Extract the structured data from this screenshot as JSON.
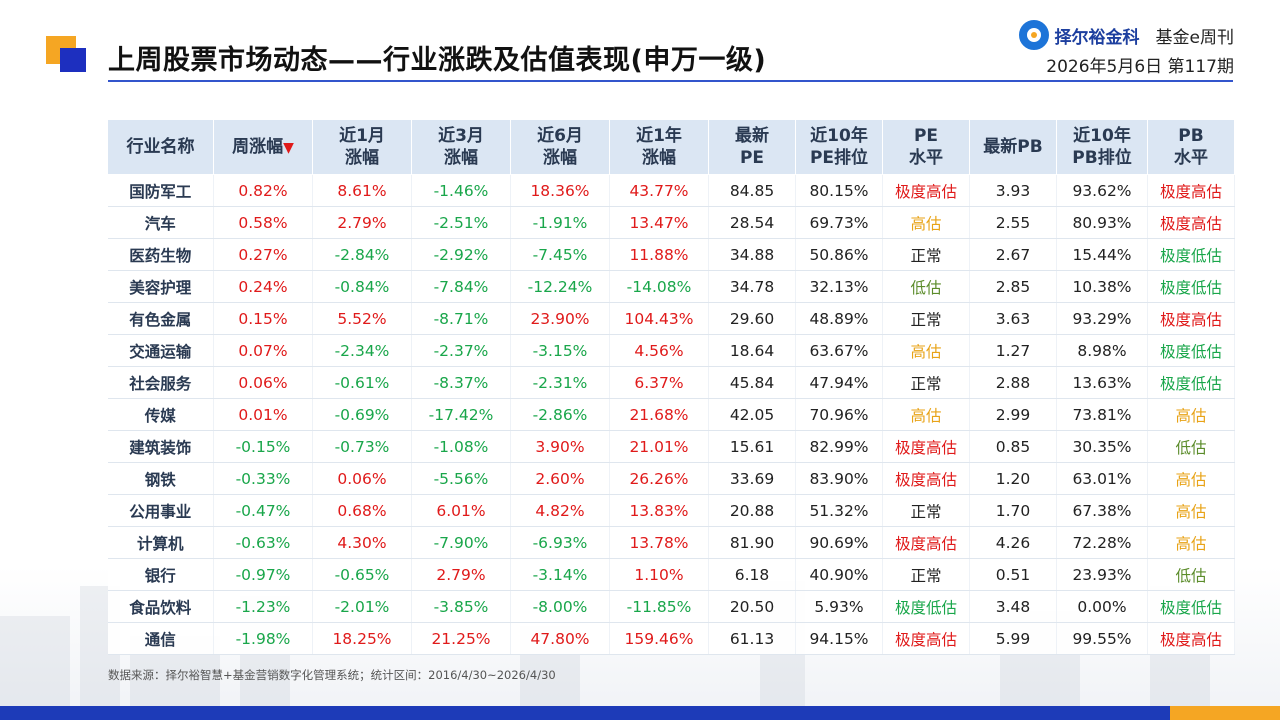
{
  "header": {
    "title": "上周股票市场动态——行业涨跌及估值表现(申万一级)",
    "brand_name": "择尔裕金科",
    "brand_tag": "基金e周刊",
    "date_issue": "2026年5月6日 第117期"
  },
  "table": {
    "headers": [
      "行业名称",
      "周涨幅",
      "近1月\n涨幅",
      "近3月\n涨幅",
      "近6月\n涨幅",
      "近1年\n涨幅",
      "最新\nPE",
      "近10年\nPE排位",
      "PE\n水平",
      "最新PB",
      "近10年\nPB排位",
      "PB\n水平"
    ],
    "sort_indicator": "▼",
    "rows": [
      [
        "国防军工",
        "0.82%",
        "8.61%",
        "-1.46%",
        "18.36%",
        "43.77%",
        "84.85",
        "80.15%",
        "极度高估",
        "3.93",
        "93.62%",
        "极度高估"
      ],
      [
        "汽车",
        "0.58%",
        "2.79%",
        "-2.51%",
        "-1.91%",
        "13.47%",
        "28.54",
        "69.73%",
        "高估",
        "2.55",
        "80.93%",
        "极度高估"
      ],
      [
        "医药生物",
        "0.27%",
        "-2.84%",
        "-2.92%",
        "-7.45%",
        "11.88%",
        "34.88",
        "50.86%",
        "正常",
        "2.67",
        "15.44%",
        "极度低估"
      ],
      [
        "美容护理",
        "0.24%",
        "-0.84%",
        "-7.84%",
        "-12.24%",
        "-14.08%",
        "34.78",
        "32.13%",
        "低估",
        "2.85",
        "10.38%",
        "极度低估"
      ],
      [
        "有色金属",
        "0.15%",
        "5.52%",
        "-8.71%",
        "23.90%",
        "104.43%",
        "29.60",
        "48.89%",
        "正常",
        "3.63",
        "93.29%",
        "极度高估"
      ],
      [
        "交通运输",
        "0.07%",
        "-2.34%",
        "-2.37%",
        "-3.15%",
        "4.56%",
        "18.64",
        "63.67%",
        "高估",
        "1.27",
        "8.98%",
        "极度低估"
      ],
      [
        "社会服务",
        "0.06%",
        "-0.61%",
        "-8.37%",
        "-2.31%",
        "6.37%",
        "45.84",
        "47.94%",
        "正常",
        "2.88",
        "13.63%",
        "极度低估"
      ],
      [
        "传媒",
        "0.01%",
        "-0.69%",
        "-17.42%",
        "-2.86%",
        "21.68%",
        "42.05",
        "70.96%",
        "高估",
        "2.99",
        "73.81%",
        "高估"
      ],
      [
        "建筑装饰",
        "-0.15%",
        "-0.73%",
        "-1.08%",
        "3.90%",
        "21.01%",
        "15.61",
        "82.99%",
        "极度高估",
        "0.85",
        "30.35%",
        "低估"
      ],
      [
        "钢铁",
        "-0.33%",
        "0.06%",
        "-5.56%",
        "2.60%",
        "26.26%",
        "33.69",
        "83.90%",
        "极度高估",
        "1.20",
        "63.01%",
        "高估"
      ],
      [
        "公用事业",
        "-0.47%",
        "0.68%",
        "6.01%",
        "4.82%",
        "13.83%",
        "20.88",
        "51.32%",
        "正常",
        "1.70",
        "67.38%",
        "高估"
      ],
      [
        "计算机",
        "-0.63%",
        "4.30%",
        "-7.90%",
        "-6.93%",
        "13.78%",
        "81.90",
        "90.69%",
        "极度高估",
        "4.26",
        "72.28%",
        "高估"
      ],
      [
        "银行",
        "-0.97%",
        "-0.65%",
        "2.79%",
        "-3.14%",
        "1.10%",
        "6.18",
        "40.90%",
        "正常",
        "0.51",
        "23.93%",
        "低估"
      ],
      [
        "食品饮料",
        "-1.23%",
        "-2.01%",
        "-3.85%",
        "-8.00%",
        "-11.85%",
        "20.50",
        "5.93%",
        "极度低估",
        "3.48",
        "0.00%",
        "极度低估"
      ],
      [
        "通信",
        "-1.98%",
        "18.25%",
        "21.25%",
        "47.80%",
        "159.46%",
        "61.13",
        "94.15%",
        "极度高估",
        "5.99",
        "99.55%",
        "极度高估"
      ]
    ]
  },
  "footer": {
    "source": "数据来源：择尔裕智慧+基金营销数字化管理系统；统计区间：2016/4/30~2026/4/30"
  },
  "colors": {
    "up": "#e01a1a",
    "down": "#19a64a",
    "overvalued": "#e8a317",
    "undervalued": "#5b8c2a",
    "header_bg": "#dbe6f3",
    "accent_blue": "#1d3bb8",
    "accent_orange": "#f5a623"
  }
}
